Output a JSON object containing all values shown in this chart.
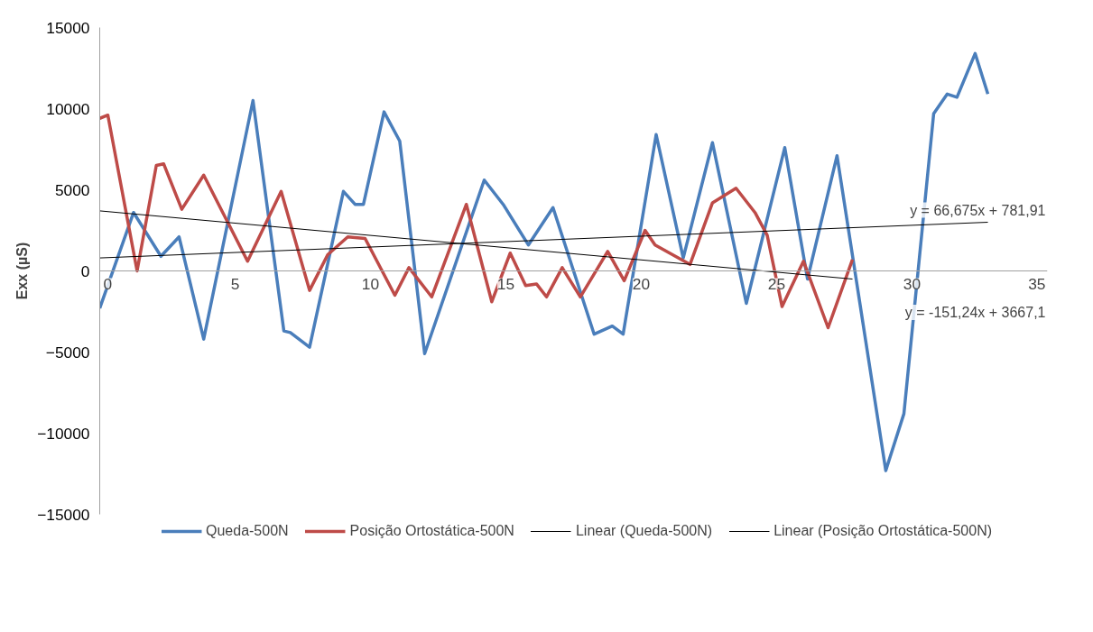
{
  "chart_data": {
    "type": "line",
    "ylabel": "Exx (µS)",
    "xlim": [
      0,
      35
    ],
    "ylim": [
      -15000,
      15000
    ],
    "xticks": [
      0,
      5,
      10,
      15,
      20,
      25,
      30,
      35
    ],
    "yticks": [
      -15000,
      -10000,
      -5000,
      0,
      5000,
      10000,
      15000
    ],
    "grid": false,
    "legend": "bottom",
    "marker": "none",
    "line_style": "solid",
    "series": [
      {
        "name": "Queda-500N",
        "color": "#4a7ebb",
        "x": [
          0,
          1.25,
          2.26,
          2.93,
          3.84,
          5.66,
          6.8,
          7.04,
          7.75,
          9.0,
          9.43,
          9.74,
          10.5,
          11.08,
          12.0,
          14.2,
          14.9,
          15.83,
          16.74,
          18.26,
          18.93,
          19.33,
          20.55,
          21.55,
          22.63,
          23.88,
          25.3,
          26.14,
          27.23,
          29.03,
          29.7,
          30.8,
          31.3,
          31.66,
          32.33,
          32.8
        ],
        "values": [
          -2300,
          3600,
          900,
          2100,
          -4200,
          10500,
          -3700,
          -3800,
          -4700,
          4900,
          4100,
          4100,
          9800,
          8000,
          -5100,
          5600,
          4100,
          1600,
          3900,
          -3900,
          -3400,
          -3900,
          8400,
          800,
          7900,
          -2000,
          7600,
          -500,
          7100,
          -12300,
          -8800,
          9700,
          10900,
          10700,
          13400,
          10900
        ]
      },
      {
        "name": "Posição Ortostática-500N",
        "color": "#be4b48",
        "x": [
          0,
          0.3,
          1.38,
          2.09,
          2.36,
          3.03,
          3.84,
          5.46,
          6.7,
          7.75,
          8.42,
          9.16,
          9.8,
          10.9,
          11.42,
          12.26,
          13.54,
          14.48,
          15.16,
          15.73,
          16.13,
          16.5,
          17.08,
          17.75,
          18.76,
          19.37,
          20.14,
          20.51,
          21.8,
          22.63,
          23.5,
          24.2,
          24.65,
          25.2,
          25.99,
          26.9,
          27.8
        ],
        "values": [
          9400,
          9600,
          0,
          6500,
          6600,
          3800,
          5900,
          600,
          4900,
          -1200,
          1000,
          2100,
          2000,
          -1500,
          200,
          -1600,
          4100,
          -1900,
          1100,
          -900,
          -800,
          -1600,
          200,
          -1600,
          1200,
          -600,
          2500,
          1600,
          400,
          4200,
          5100,
          3600,
          2200,
          -2200,
          600,
          -3500,
          700
        ]
      },
      {
        "name": "Linear (Queda-500N)",
        "color": "#000000",
        "x": [
          0,
          32.8
        ],
        "values": [
          800,
          3000
        ]
      },
      {
        "name": "Linear (Posição Ortostática-500N)",
        "color": "#000000",
        "x": [
          0,
          27.8
        ],
        "values": [
          3700,
          -500
        ]
      }
    ],
    "annotations": [
      "y = 66,675x + 781,91",
      "y = -151,24x + 3667,1"
    ]
  }
}
